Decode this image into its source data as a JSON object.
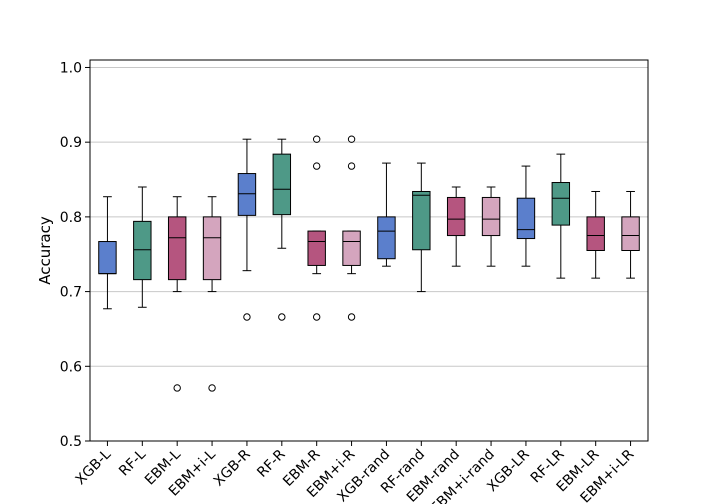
{
  "chart_data": {
    "type": "box",
    "title": "",
    "xlabel": "",
    "ylabel": "Accuracy",
    "ylim": [
      0.5,
      1.01
    ],
    "yticks": [
      "0.5",
      "0.6",
      "0.7",
      "0.8",
      "0.9",
      "1.0"
    ],
    "grid": "horizontal",
    "colors": {
      "XGB": "#5b7fcc",
      "RF": "#4e9987",
      "EBM": "#b5557f",
      "EBM+i": "#d4a5be"
    },
    "categories": [
      "XGB-L",
      "RF-L",
      "EBM-L",
      "EBM+i-L",
      "XGB-R",
      "RF-R",
      "EBM-R",
      "EBM+i-R",
      "XGB-rand",
      "RF-rand",
      "EBM-rand",
      "EBM+i-rand",
      "XGB-LR",
      "RF-LR",
      "EBM-LR",
      "EBM+i-LR"
    ],
    "boxes": [
      {
        "model": "XGB",
        "whislo": 0.677,
        "q1": 0.724,
        "med": 0.724,
        "q3": 0.767,
        "whishi": 0.827,
        "fliers": []
      },
      {
        "model": "RF",
        "whislo": 0.679,
        "q1": 0.716,
        "med": 0.756,
        "q3": 0.794,
        "whishi": 0.84,
        "fliers": []
      },
      {
        "model": "EBM",
        "whislo": 0.7,
        "q1": 0.716,
        "med": 0.772,
        "q3": 0.8,
        "whishi": 0.827,
        "fliers": [
          0.571
        ]
      },
      {
        "model": "EBM+i",
        "whislo": 0.7,
        "q1": 0.716,
        "med": 0.772,
        "q3": 0.8,
        "whishi": 0.827,
        "fliers": [
          0.571
        ]
      },
      {
        "model": "XGB",
        "whislo": 0.728,
        "q1": 0.802,
        "med": 0.831,
        "q3": 0.858,
        "whishi": 0.904,
        "fliers": [
          0.666
        ]
      },
      {
        "model": "RF",
        "whislo": 0.758,
        "q1": 0.803,
        "med": 0.837,
        "q3": 0.884,
        "whishi": 0.904,
        "fliers": [
          0.666
        ]
      },
      {
        "model": "EBM",
        "whislo": 0.724,
        "q1": 0.735,
        "med": 0.767,
        "q3": 0.781,
        "whishi": 0.781,
        "fliers": [
          0.666,
          0.868,
          0.904
        ]
      },
      {
        "model": "EBM+i",
        "whislo": 0.724,
        "q1": 0.735,
        "med": 0.767,
        "q3": 0.781,
        "whishi": 0.781,
        "fliers": [
          0.666,
          0.868,
          0.904
        ]
      },
      {
        "model": "XGB",
        "whislo": 0.734,
        "q1": 0.744,
        "med": 0.781,
        "q3": 0.8,
        "whishi": 0.872,
        "fliers": []
      },
      {
        "model": "RF",
        "whislo": 0.7,
        "q1": 0.756,
        "med": 0.829,
        "q3": 0.834,
        "whishi": 0.872,
        "fliers": []
      },
      {
        "model": "EBM",
        "whislo": 0.734,
        "q1": 0.775,
        "med": 0.797,
        "q3": 0.826,
        "whishi": 0.84,
        "fliers": []
      },
      {
        "model": "EBM+i",
        "whislo": 0.734,
        "q1": 0.775,
        "med": 0.797,
        "q3": 0.826,
        "whishi": 0.84,
        "fliers": []
      },
      {
        "model": "XGB",
        "whislo": 0.734,
        "q1": 0.771,
        "med": 0.783,
        "q3": 0.825,
        "whishi": 0.868,
        "fliers": []
      },
      {
        "model": "RF",
        "whislo": 0.718,
        "q1": 0.789,
        "med": 0.825,
        "q3": 0.846,
        "whishi": 0.884,
        "fliers": []
      },
      {
        "model": "EBM",
        "whislo": 0.718,
        "q1": 0.755,
        "med": 0.775,
        "q3": 0.8,
        "whishi": 0.834,
        "fliers": []
      },
      {
        "model": "EBM+i",
        "whislo": 0.718,
        "q1": 0.755,
        "med": 0.775,
        "q3": 0.8,
        "whishi": 0.834,
        "fliers": []
      }
    ]
  }
}
